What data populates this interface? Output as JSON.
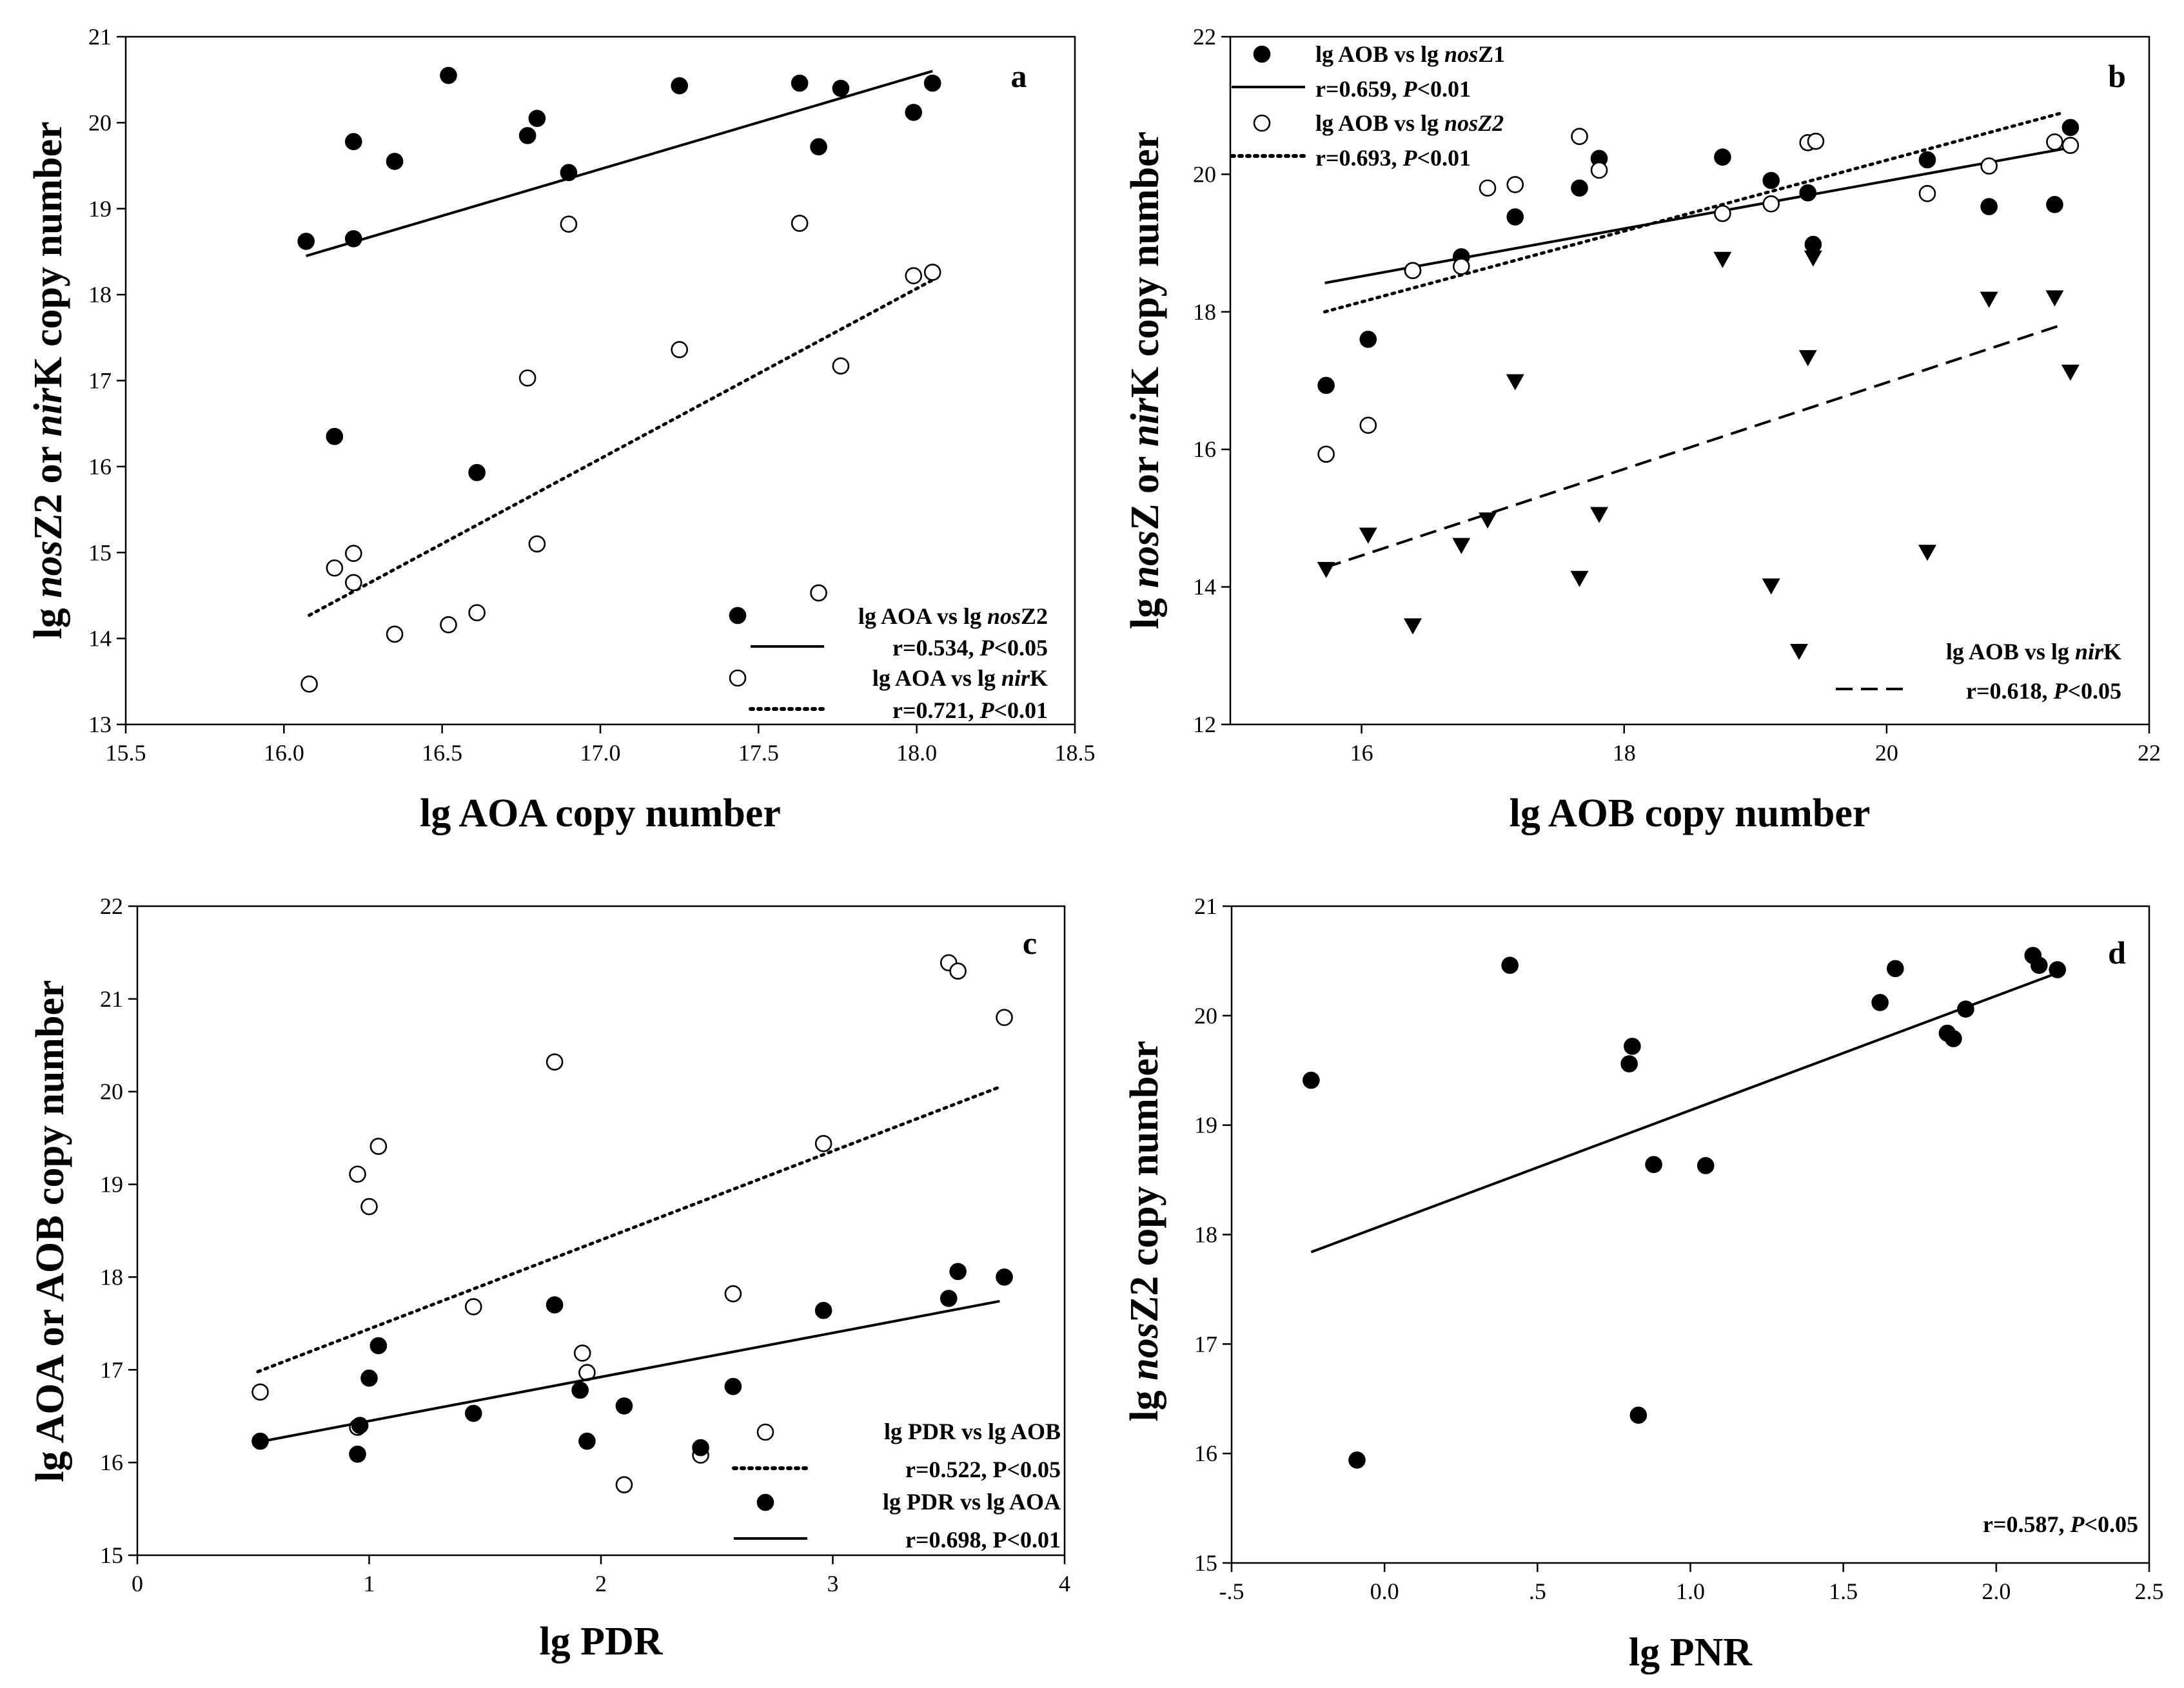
{
  "chart_data": [
    {
      "type": "scatter",
      "panel_label": "a",
      "xlabel": "lg AOA copy number",
      "ylabel": {
        "pre": "lg ",
        "it1": "nos",
        "mid": "Z2 or ",
        "it2": "nir",
        "post": "K copy number"
      },
      "xlim": [
        15.5,
        18.5
      ],
      "ylim": [
        13,
        21
      ],
      "xticks": [
        15.5,
        16.0,
        16.5,
        17.0,
        17.5,
        18.0,
        18.5
      ],
      "xtick_labels": [
        "15.5",
        "16.0",
        "16.5",
        "17.0",
        "17.5",
        "18.0",
        "18.5"
      ],
      "yticks": [
        13,
        14,
        15,
        16,
        17,
        18,
        19,
        20,
        21
      ],
      "ytick_labels": [
        "13",
        "14",
        "15",
        "16",
        "17",
        "18",
        "19",
        "20",
        "21"
      ],
      "series": [
        {
          "name": "lg AOA vs lg nosZ2",
          "legend": [
            "lg AOA vs lg ",
            "nos",
            "Z2"
          ],
          "stat": [
            "r=0.534, ",
            "P",
            "<0.05"
          ],
          "marker": "filled",
          "line": "solid",
          "x": [
            16.07,
            16.16,
            16.22,
            16.22,
            16.35,
            16.52,
            16.61,
            16.77,
            16.8,
            16.9,
            17.25,
            17.63,
            17.69,
            17.76,
            17.99,
            18.05
          ],
          "y": [
            18.62,
            16.35,
            18.65,
            19.78,
            19.55,
            20.55,
            15.93,
            19.85,
            20.05,
            19.42,
            20.43,
            20.46,
            19.72,
            20.4,
            20.12,
            20.46
          ],
          "fit": [
            [
              16.07,
              18.45
            ],
            [
              18.05,
              20.6
            ]
          ]
        },
        {
          "name": "lg AOA vs lg nirK",
          "legend": [
            "lg AOA vs lg ",
            "nir",
            "K"
          ],
          "stat": [
            "r=0.721, ",
            "P",
            "<0.01"
          ],
          "marker": "open",
          "line": "dotted",
          "x": [
            16.08,
            16.16,
            16.22,
            16.22,
            16.35,
            16.52,
            16.61,
            16.77,
            16.8,
            16.9,
            17.25,
            17.63,
            17.69,
            17.76,
            17.99,
            18.05
          ],
          "y": [
            13.47,
            14.82,
            14.99,
            14.65,
            14.05,
            14.16,
            14.3,
            17.03,
            15.1,
            18.82,
            17.36,
            18.83,
            14.53,
            17.17,
            18.22,
            18.26
          ],
          "fit": [
            [
              16.08,
              14.27
            ],
            [
              18.05,
              18.17
            ]
          ]
        }
      ]
    },
    {
      "type": "scatter",
      "panel_label": "b",
      "xlabel": "lg AOB copy number",
      "ylabel": {
        "pre": "lg ",
        "it1": "nos",
        "mid": "Z or ",
        "it2": "nir",
        "post": "K copy number"
      },
      "xlim": [
        15,
        22
      ],
      "ylim": [
        12,
        22
      ],
      "xticks": [
        16,
        18,
        20,
        22
      ],
      "xtick_labels": [
        "16",
        "18",
        "20",
        "22"
      ],
      "yticks": [
        12,
        14,
        16,
        18,
        20,
        22
      ],
      "ytick_labels": [
        "12",
        "14",
        "16",
        "18",
        "20",
        "22"
      ],
      "series": [
        {
          "name": "lg AOB vs lg nosZ1",
          "legend": [
            "lg AOB vs lg ",
            "nos",
            "Z1"
          ],
          "stat": [
            "r=0.659, ",
            "P",
            "<0.01"
          ],
          "marker": "filled",
          "line": "solid",
          "x": [
            15.73,
            16.05,
            16.39,
            16.76,
            17.17,
            17.66,
            17.81,
            18.75,
            19.12,
            19.4,
            19.44,
            20.31,
            20.78,
            21.28,
            21.4
          ],
          "y": [
            16.93,
            17.6,
            18.6,
            18.8,
            19.38,
            19.8,
            20.23,
            20.25,
            19.91,
            19.73,
            18.98,
            20.21,
            19.53,
            19.56,
            20.68
          ],
          "fit": [
            [
              15.72,
              18.42
            ],
            [
              21.35,
              20.37
            ]
          ]
        },
        {
          "name": "lg AOB vs lg nosZ2",
          "legend": [
            "lg AOB vs lg ",
            "nosZ2",
            ""
          ],
          "stat": [
            "r=0.693, ",
            "P",
            "<0.01"
          ],
          "marker": "open",
          "line": "dotted",
          "x": [
            15.73,
            16.05,
            16.39,
            16.76,
            16.96,
            17.17,
            17.66,
            17.81,
            18.75,
            19.12,
            19.4,
            19.46,
            20.31,
            20.78,
            21.28,
            21.4
          ],
          "y": [
            15.93,
            16.35,
            18.6,
            18.66,
            19.8,
            19.85,
            20.55,
            20.06,
            19.43,
            19.57,
            20.46,
            20.48,
            19.72,
            20.12,
            20.47,
            20.42
          ],
          "fit": [
            [
              15.72,
              18.0
            ],
            [
              21.35,
              20.9
            ]
          ]
        },
        {
          "name": "lg AOB vs lg nirK",
          "legend": [
            "lg AOB vs lg ",
            "nir",
            "K"
          ],
          "stat": [
            "r=0.618, ",
            "P",
            "<0.05"
          ],
          "marker": "triangle",
          "line": "dashed",
          "x": [
            15.73,
            16.05,
            16.39,
            16.76,
            16.96,
            17.17,
            17.66,
            17.81,
            18.75,
            19.12,
            19.4,
            19.44,
            20.31,
            20.78,
            21.28,
            21.4
          ],
          "y": [
            14.25,
            14.75,
            13.43,
            14.6,
            14.97,
            16.98,
            14.12,
            15.05,
            18.76,
            14.01,
            17.33,
            18.78,
            14.5,
            18.18,
            18.2,
            17.12
          ],
          "fit": [
            [
              15.72,
              14.28
            ],
            [
              21.35,
              17.82
            ]
          ]
        }
      ]
    },
    {
      "type": "scatter",
      "panel_label": "c",
      "xlabel": "lg PDR",
      "ylabel": {
        "pre": "lg AOA or AOB copy number",
        "it1": "",
        "mid": "",
        "it2": "",
        "post": ""
      },
      "xlim": [
        0,
        4
      ],
      "ylim": [
        15,
        22
      ],
      "xticks": [
        0,
        1,
        2,
        3,
        4
      ],
      "xtick_labels": [
        "0",
        "1",
        "2",
        "3",
        "4"
      ],
      "yticks": [
        15,
        16,
        17,
        18,
        19,
        20,
        21,
        22
      ],
      "ytick_labels": [
        "15",
        "16",
        "17",
        "18",
        "19",
        "20",
        "21",
        "22"
      ],
      "series": [
        {
          "name": "lg PDR vs lg AOB",
          "legend": [
            "lg PDR vs lg AOB",
            "",
            ""
          ],
          "stat": [
            "r=0.522, P<0.05",
            "",
            ""
          ],
          "marker": "open",
          "line": "dotted",
          "x": [
            0.53,
            0.95,
            0.95,
            1.0,
            1.04,
            1.45,
            1.8,
            1.92,
            1.94,
            2.1,
            2.43,
            2.57,
            2.96,
            3.5,
            3.54,
            3.74
          ],
          "y": [
            16.76,
            16.38,
            19.11,
            18.76,
            19.41,
            17.68,
            20.32,
            17.18,
            16.97,
            15.76,
            16.08,
            17.82,
            19.44,
            21.39,
            21.3,
            20.8
          ],
          "fit": [
            [
              0.52,
              16.98
            ],
            [
              3.72,
              20.05
            ]
          ]
        },
        {
          "name": "lg PDR vs lg AOA",
          "legend": [
            "lg PDR vs lg AOA",
            "",
            ""
          ],
          "stat": [
            "r=0.698, P<0.01",
            "",
            ""
          ],
          "marker": "filled",
          "line": "solid",
          "x": [
            0.53,
            0.95,
            0.96,
            1.0,
            1.04,
            1.45,
            1.8,
            1.91,
            1.94,
            2.1,
            2.43,
            2.57,
            2.96,
            3.5,
            3.54,
            3.74
          ],
          "y": [
            16.23,
            16.09,
            16.4,
            16.91,
            17.26,
            16.53,
            17.7,
            16.78,
            16.23,
            16.61,
            16.16,
            16.82,
            17.64,
            17.77,
            18.06,
            18.0
          ],
          "fit": [
            [
              0.52,
              16.22
            ],
            [
              3.72,
              17.74
            ]
          ]
        }
      ]
    },
    {
      "type": "scatter",
      "panel_label": "d",
      "xlabel": "lg PNR",
      "ylabel": {
        "pre": "lg ",
        "it1": "nos",
        "mid": "Z2 copy number",
        "it2": "",
        "post": ""
      },
      "xlim": [
        -0.5,
        2.5
      ],
      "ylim": [
        15,
        21
      ],
      "xticks": [
        -0.5,
        0,
        0.5,
        1.0,
        1.5,
        2.0,
        2.5
      ],
      "xtick_labels": [
        "-.5",
        "0.0",
        ".5",
        "1.0",
        "1.5",
        "2.0",
        "2.5"
      ],
      "yticks": [
        15,
        16,
        17,
        18,
        19,
        20,
        21
      ],
      "ytick_labels": [
        "15",
        "16",
        "17",
        "18",
        "19",
        "20",
        "21"
      ],
      "series": [
        {
          "name": "lg PNR vs lg nosZ2",
          "legend": [
            "",
            "",
            ""
          ],
          "stat": [
            "r=0.587, ",
            "P",
            "<0.05"
          ],
          "marker": "filled",
          "line": "solid",
          "x": [
            -0.24,
            -0.09,
            0.41,
            0.8,
            0.81,
            0.88,
            1.05,
            0.83,
            1.62,
            1.67,
            1.84,
            1.86,
            1.9,
            2.12,
            2.14,
            2.2
          ],
          "y": [
            19.41,
            15.94,
            20.46,
            19.56,
            19.72,
            18.64,
            18.63,
            16.35,
            20.12,
            20.43,
            19.84,
            19.79,
            20.06,
            20.55,
            20.46,
            20.42
          ],
          "fit": [
            [
              -0.24,
              17.84
            ],
            [
              2.2,
              20.39
            ]
          ]
        }
      ]
    }
  ]
}
